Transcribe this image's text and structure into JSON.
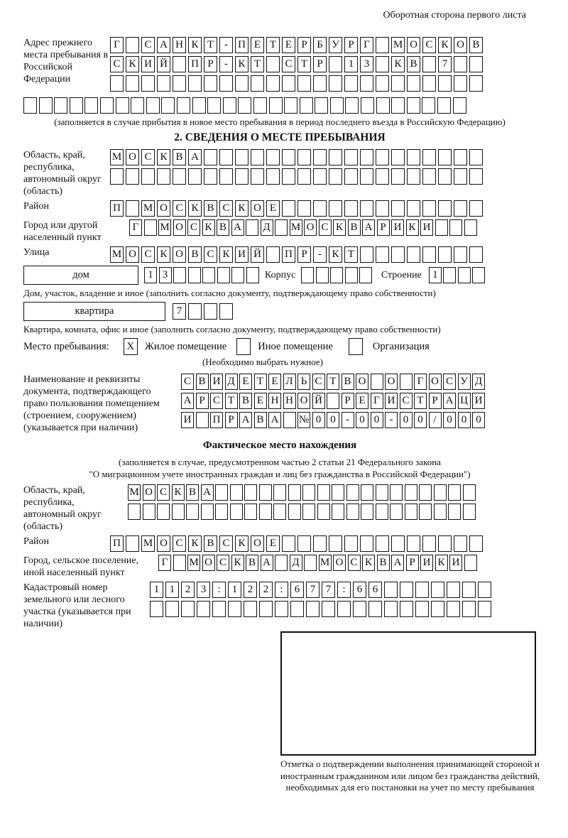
{
  "colors": {
    "ink": "#111111",
    "paper": "#ffffff"
  },
  "header": {
    "note": "Оборотная сторона первого листа"
  },
  "prev_address": {
    "label": "Адрес прежнего места пребывания в Российской Федерации",
    "rows": [
      {
        "chars": "Г САНКТ-ПЕТЕРБУРГ МОСКОВ",
        "len": 24
      },
      {
        "chars": "СКИЙ ПР-КТ СТР 13 КВ 7",
        "len": 24
      },
      {
        "chars": "",
        "len": 24
      },
      {
        "chars": "",
        "len": 29
      }
    ],
    "note": "(заполняется в случае прибытия в новое место пребывания в период последнего въезда в Российскую Федерацию)"
  },
  "section2": {
    "title": "2. СВЕДЕНИЯ О МЕСТЕ ПРЕБЫВАНИЯ",
    "region": {
      "label": "Область, край, республика, автономный округ (область)",
      "rows": [
        {
          "chars": "МОСКВА",
          "len": 24
        },
        {
          "chars": "",
          "len": 24
        }
      ]
    },
    "district": {
      "label": "Район",
      "row": {
        "chars": "П МОСКВСКОЕ",
        "len": 24
      }
    },
    "city": {
      "label": "Город или другой населенный пункт",
      "row": {
        "chars": "Г МОСКВА Д МОСКВАРИКИ",
        "len": 24
      }
    },
    "street": {
      "label": "Улица",
      "row": {
        "chars": "МОСКОВСКИЙ ПР-КТ",
        "len": 24
      }
    },
    "house": {
      "box_label": "дом",
      "cells": {
        "chars": "13",
        "len": 8
      },
      "korpus_label": "Корпус",
      "korpus_cells": {
        "chars": "",
        "len": 5
      },
      "stroenie_label": "Строение",
      "stroenie_cells": {
        "chars": "1",
        "len": 4
      }
    },
    "house_note": "Дом, участок, владение и иное (заполнить согласно документу, подтверждающему право собственности)",
    "apartment": {
      "box_label": "квартира",
      "cells": {
        "chars": "7",
        "len": 4
      }
    },
    "apartment_note": "Квартира, комната, офис и иное (заполнить согласно документу, подтверждающему право собственности)",
    "stay_type": {
      "label": "Место пребывания:",
      "options": [
        {
          "label": "Жилое помещение",
          "mark": "X"
        },
        {
          "label": "Иное помещение",
          "mark": ""
        },
        {
          "label": "Организация",
          "mark": ""
        }
      ],
      "note": "(Необходимо выбрать нужное)"
    },
    "document": {
      "label": "Наименование и реквизиты документа, подтверждающего право пользования помещением (строением, сооружением) (указывается при наличии)",
      "rows": [
        {
          "chars": "СВИДЕТЕЛЬСТВО О ГОСУД",
          "len": 21
        },
        {
          "chars": "АРСТВЕННОЙ РЕГИСТРАЦИ",
          "len": 21
        },
        {
          "chars": "И ПРАВА №00-00-00/000",
          "len": 21
        }
      ]
    }
  },
  "actual_location": {
    "title": "Фактическое место нахождения",
    "note_line1": "(заполняется в случае, предусмотренном частью 2 статьи 21 Федерального закона",
    "note_line2": "\"О миграционном учете иностранных граждан и лиц без гражданства в Российской Федерации\")",
    "region": {
      "label": "Область, край, республика, автономный округ (область)",
      "rows": [
        {
          "chars": "МОСКВА",
          "len": 24
        },
        {
          "chars": "",
          "len": 24
        }
      ]
    },
    "district": {
      "label": "Район",
      "row": {
        "chars": "П МОСКВСКОЕ",
        "len": 24
      }
    },
    "city": {
      "label": "Город, сельское поселение, иной населенный пункт",
      "row": {
        "chars": "Г МОСКВА Д МОСКВАРИКИ",
        "len": 22
      }
    },
    "cadastral": {
      "label": "Кадастровый номер земельного или лесного участка (указывается при наличии)",
      "rows": [
        {
          "chars": "1123:122:677:66",
          "len": 22
        },
        {
          "chars": "",
          "len": 22
        }
      ]
    },
    "stamp_caption": "Отметка о подтверждении выполнения принимающей стороной и иностранным гражданином или лицом без гражданства действий, необходимых для его постановки на учет по месту пребывания"
  }
}
